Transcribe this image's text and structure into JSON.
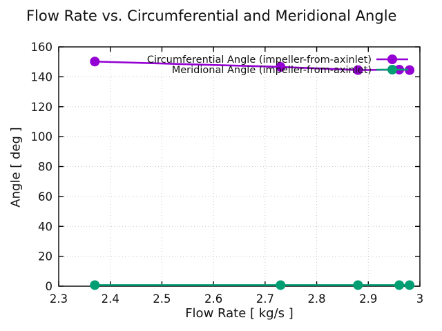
{
  "chart_data": {
    "type": "line",
    "title": "Flow Rate vs. Circumferential and Meridional Angle",
    "xlabel": "Flow Rate [ kg/s ]",
    "ylabel": "Angle [ deg ]",
    "xlim": [
      2.3,
      3.0
    ],
    "ylim": [
      0,
      160
    ],
    "xticks": [
      2.3,
      2.4,
      2.5,
      2.6,
      2.7,
      2.8,
      2.9,
      3.0
    ],
    "xtick_labels": [
      "2.3",
      "2.4",
      "2.5",
      "2.6",
      "2.7",
      "2.8",
      "2.9",
      "3"
    ],
    "yticks": [
      0,
      20,
      40,
      60,
      80,
      100,
      120,
      140,
      160
    ],
    "ytick_labels": [
      "0",
      "20",
      "40",
      "60",
      "80",
      "100",
      "120",
      "140",
      "160"
    ],
    "grid": true,
    "grid_style": "dotted",
    "legend_position": "top-right-inside",
    "x": [
      2.37,
      2.73,
      2.88,
      2.96,
      2.98
    ],
    "series": [
      {
        "name": "Circumferential Angle (impeller-from-axinlet)",
        "color": "#9400d3",
        "marker": "circle",
        "values": [
          150.2,
          146.6,
          144.5,
          144.8,
          144.5
        ]
      },
      {
        "name": "Meridional Angle (impeller-from-axinlet)",
        "color": "#009e73",
        "marker": "circle",
        "values": [
          0.7,
          0.7,
          0.7,
          0.7,
          0.7
        ]
      }
    ],
    "colors": {
      "axis": "#000000",
      "grid": "#c8c8c8",
      "text": "#111111"
    }
  }
}
